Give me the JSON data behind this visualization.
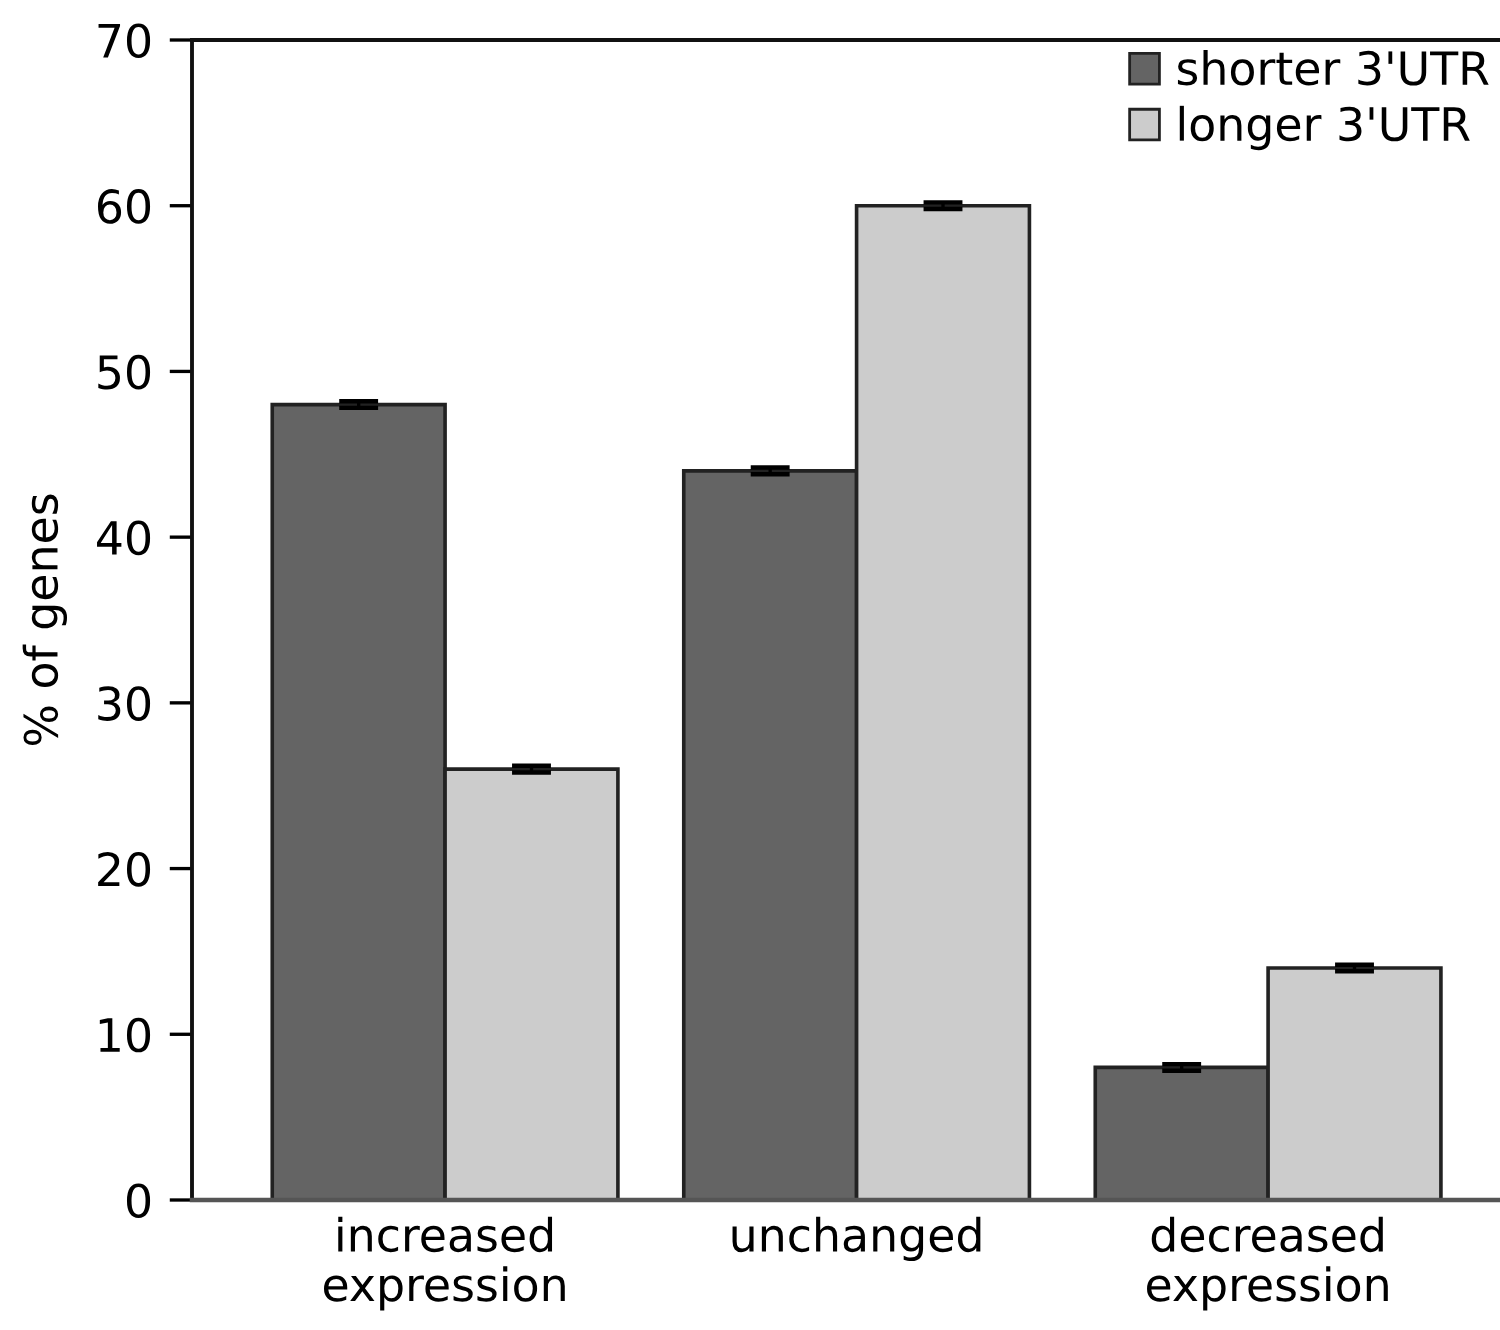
{
  "chart_data": {
    "type": "bar",
    "ylabel": "% of genes",
    "categories": [
      "increased\nexpression",
      "unchanged",
      "decreased\nexpression"
    ],
    "series": [
      {
        "name": "shorter 3'UTR",
        "color": "#646464",
        "values": [
          48,
          44,
          8
        ],
        "errors": [
          0.2,
          0.2,
          0.2
        ]
      },
      {
        "name": "longer 3'UTR",
        "color": "#cccccc",
        "values": [
          26,
          60,
          14
        ],
        "errors": [
          0.2,
          0.2,
          0.2
        ]
      }
    ],
    "ylim": [
      0,
      70
    ],
    "yticks": [
      0,
      10,
      20,
      30,
      40,
      50,
      60,
      70
    ],
    "legend": "top right",
    "grid": false
  }
}
